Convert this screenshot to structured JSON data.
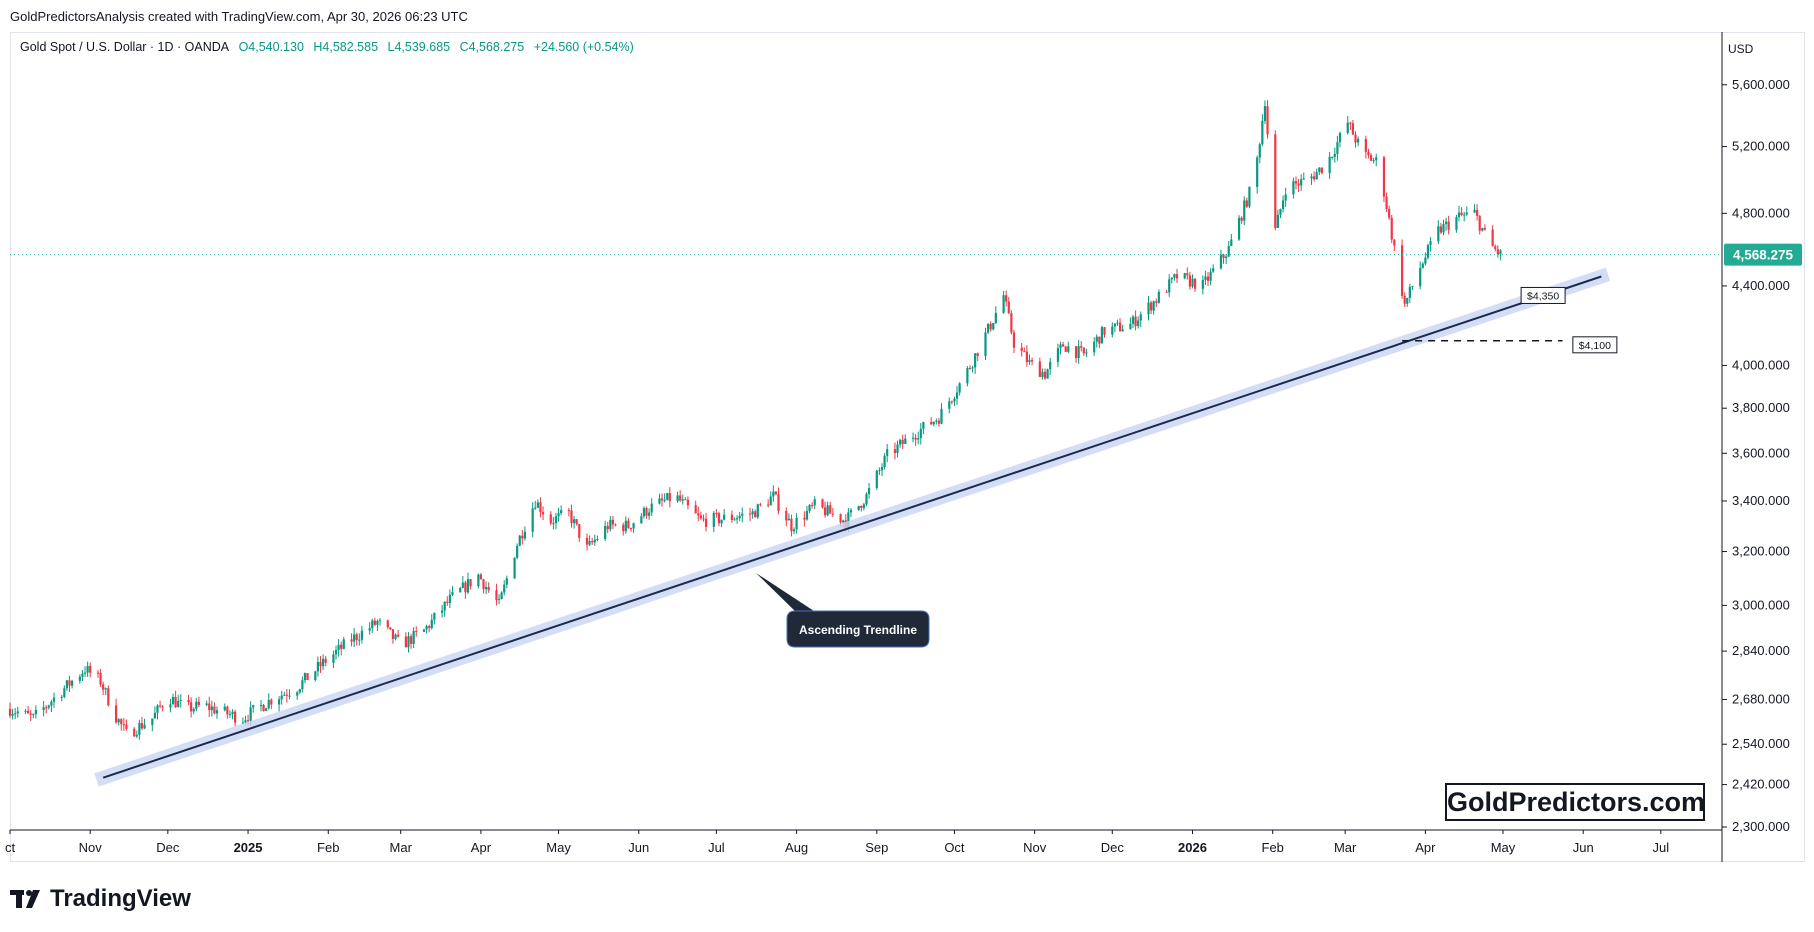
{
  "header": {
    "attribution": "GoldPredictorsAnalysis created with TradingView.com, Apr 30, 2026 06:23 UTC"
  },
  "symbol": {
    "name": "Gold Spot / U.S. Dollar · 1D · OANDA",
    "open": "O4,540.130",
    "high": "H4,582.585",
    "low": "L4,539.685",
    "close": "C4,568.275",
    "change": "+24.560 (+0.54%)"
  },
  "currency": "USD",
  "last_price_label": "4,568.275",
  "brand": "GoldPredictors.com",
  "tv_logo_text": "TradingView",
  "colors": {
    "up": "#089981",
    "down": "#f23645",
    "trend": "#1e2a4a",
    "trend_band": "#c9d6f5",
    "accent": "#22ab94"
  },
  "chart_data": {
    "type": "candlestick",
    "y_scale": "log",
    "ylim": [
      2300,
      5700
    ],
    "y_ticks": [
      2300,
      2420,
      2540,
      2680,
      2840,
      3000,
      3200,
      3400,
      3600,
      3800,
      4000,
      4400,
      4800,
      5200,
      5600
    ],
    "y_tick_labels": [
      "2,300.000",
      "2,420.000",
      "2,540.000",
      "2,680.000",
      "2,840.000",
      "3,000.000",
      "3,200.000",
      "3,400.000",
      "3,600.000",
      "3,800.000",
      "4,000.000",
      "4,400.000",
      "4,800.000",
      "5,200.000",
      "5,600.000"
    ],
    "x_range": [
      "2024-10-01",
      "2026-07-20"
    ],
    "x_ticks": [
      {
        "date": "2024-10-01",
        "label": "ct",
        "bold": false
      },
      {
        "date": "2024-11-01",
        "label": "Nov",
        "bold": false
      },
      {
        "date": "2024-12-01",
        "label": "Dec",
        "bold": false
      },
      {
        "date": "2025-01-01",
        "label": "2025",
        "bold": true
      },
      {
        "date": "2025-02-01",
        "label": "Feb",
        "bold": false
      },
      {
        "date": "2025-03-01",
        "label": "Mar",
        "bold": false
      },
      {
        "date": "2025-04-01",
        "label": "Apr",
        "bold": false
      },
      {
        "date": "2025-05-01",
        "label": "May",
        "bold": false
      },
      {
        "date": "2025-06-01",
        "label": "Jun",
        "bold": false
      },
      {
        "date": "2025-07-01",
        "label": "Jul",
        "bold": false
      },
      {
        "date": "2025-08-01",
        "label": "Aug",
        "bold": false
      },
      {
        "date": "2025-09-01",
        "label": "Sep",
        "bold": false
      },
      {
        "date": "2025-10-01",
        "label": "Oct",
        "bold": false
      },
      {
        "date": "2025-11-01",
        "label": "Nov",
        "bold": false
      },
      {
        "date": "2025-12-01",
        "label": "Dec",
        "bold": false
      },
      {
        "date": "2026-01-01",
        "label": "2026",
        "bold": true
      },
      {
        "date": "2026-02-01",
        "label": "Feb",
        "bold": false
      },
      {
        "date": "2026-03-01",
        "label": "Mar",
        "bold": false
      },
      {
        "date": "2026-04-01",
        "label": "Apr",
        "bold": false
      },
      {
        "date": "2026-05-01",
        "label": "May",
        "bold": false
      },
      {
        "date": "2026-06-01",
        "label": "Jun",
        "bold": false
      },
      {
        "date": "2026-07-01",
        "label": "Jul",
        "bold": false
      }
    ],
    "closes": [
      [
        "2024-10-01",
        2650
      ],
      [
        "2024-10-10",
        2620
      ],
      [
        "2024-10-20",
        2700
      ],
      [
        "2024-10-30",
        2780
      ],
      [
        "2024-11-05",
        2740
      ],
      [
        "2024-11-10",
        2640
      ],
      [
        "2024-11-15",
        2570
      ],
      [
        "2024-11-25",
        2620
      ],
      [
        "2024-12-01",
        2690
      ],
      [
        "2024-12-08",
        2650
      ],
      [
        "2024-12-15",
        2660
      ],
      [
        "2024-12-22",
        2640
      ],
      [
        "2024-12-30",
        2620
      ],
      [
        "2025-01-10",
        2680
      ],
      [
        "2025-01-20",
        2720
      ],
      [
        "2025-01-30",
        2800
      ],
      [
        "2025-02-10",
        2880
      ],
      [
        "2025-02-20",
        2940
      ],
      [
        "2025-03-01",
        2860
      ],
      [
        "2025-03-10",
        2910
      ],
      [
        "2025-03-20",
        3020
      ],
      [
        "2025-03-31",
        3110
      ],
      [
        "2025-04-08",
        3000
      ],
      [
        "2025-04-15",
        3230
      ],
      [
        "2025-04-22",
        3400
      ],
      [
        "2025-04-28",
        3320
      ],
      [
        "2025-05-05",
        3350
      ],
      [
        "2025-05-12",
        3210
      ],
      [
        "2025-05-20",
        3300
      ],
      [
        "2025-05-28",
        3300
      ],
      [
        "2025-06-05",
        3370
      ],
      [
        "2025-06-15",
        3420
      ],
      [
        "2025-06-25",
        3320
      ],
      [
        "2025-07-05",
        3330
      ],
      [
        "2025-07-15",
        3350
      ],
      [
        "2025-07-23",
        3420
      ],
      [
        "2025-07-30",
        3300
      ],
      [
        "2025-08-08",
        3380
      ],
      [
        "2025-08-20",
        3320
      ],
      [
        "2025-08-28",
        3420
      ],
      [
        "2025-09-05",
        3590
      ],
      [
        "2025-09-15",
        3680
      ],
      [
        "2025-09-25",
        3760
      ],
      [
        "2025-10-05",
        3950
      ],
      [
        "2025-10-15",
        4200
      ],
      [
        "2025-10-20",
        4350
      ],
      [
        "2025-10-24",
        4110
      ],
      [
        "2025-10-30",
        4010
      ],
      [
        "2025-11-05",
        3960
      ],
      [
        "2025-11-12",
        4100
      ],
      [
        "2025-11-20",
        4050
      ],
      [
        "2025-11-28",
        4170
      ],
      [
        "2025-12-08",
        4200
      ],
      [
        "2025-12-18",
        4330
      ],
      [
        "2025-12-26",
        4450
      ],
      [
        "2026-01-05",
        4400
      ],
      [
        "2026-01-15",
        4600
      ],
      [
        "2026-01-25",
        5000
      ],
      [
        "2026-01-29",
        5500
      ],
      [
        "2026-02-02",
        4700
      ],
      [
        "2026-02-06",
        4950
      ],
      [
        "2026-02-15",
        5000
      ],
      [
        "2026-02-22",
        5100
      ],
      [
        "2026-03-02",
        5350
      ],
      [
        "2026-03-08",
        5150
      ],
      [
        "2026-03-14",
        5100
      ],
      [
        "2026-03-20",
        4600
      ],
      [
        "2026-03-24",
        4300
      ],
      [
        "2026-03-30",
        4500
      ],
      [
        "2026-04-06",
        4700
      ],
      [
        "2026-04-14",
        4780
      ],
      [
        "2026-04-20",
        4800
      ],
      [
        "2026-04-26",
        4620
      ],
      [
        "2026-04-30",
        4568
      ]
    ],
    "trendline": {
      "start": [
        "2024-11-06",
        2440
      ],
      "end": [
        "2026-06-08",
        4450
      ]
    },
    "annotations": [
      {
        "label": "Ascending Trendline"
      },
      {
        "label": "$4,350",
        "date": "2026-05-08",
        "price": 4350
      },
      {
        "label": "$4,100",
        "date": "2026-05-28",
        "price": 4100
      }
    ],
    "support_line": {
      "price": 4120,
      "from": "2026-03-23",
      "to": "2026-05-24"
    },
    "last_price": 4568.275
  }
}
